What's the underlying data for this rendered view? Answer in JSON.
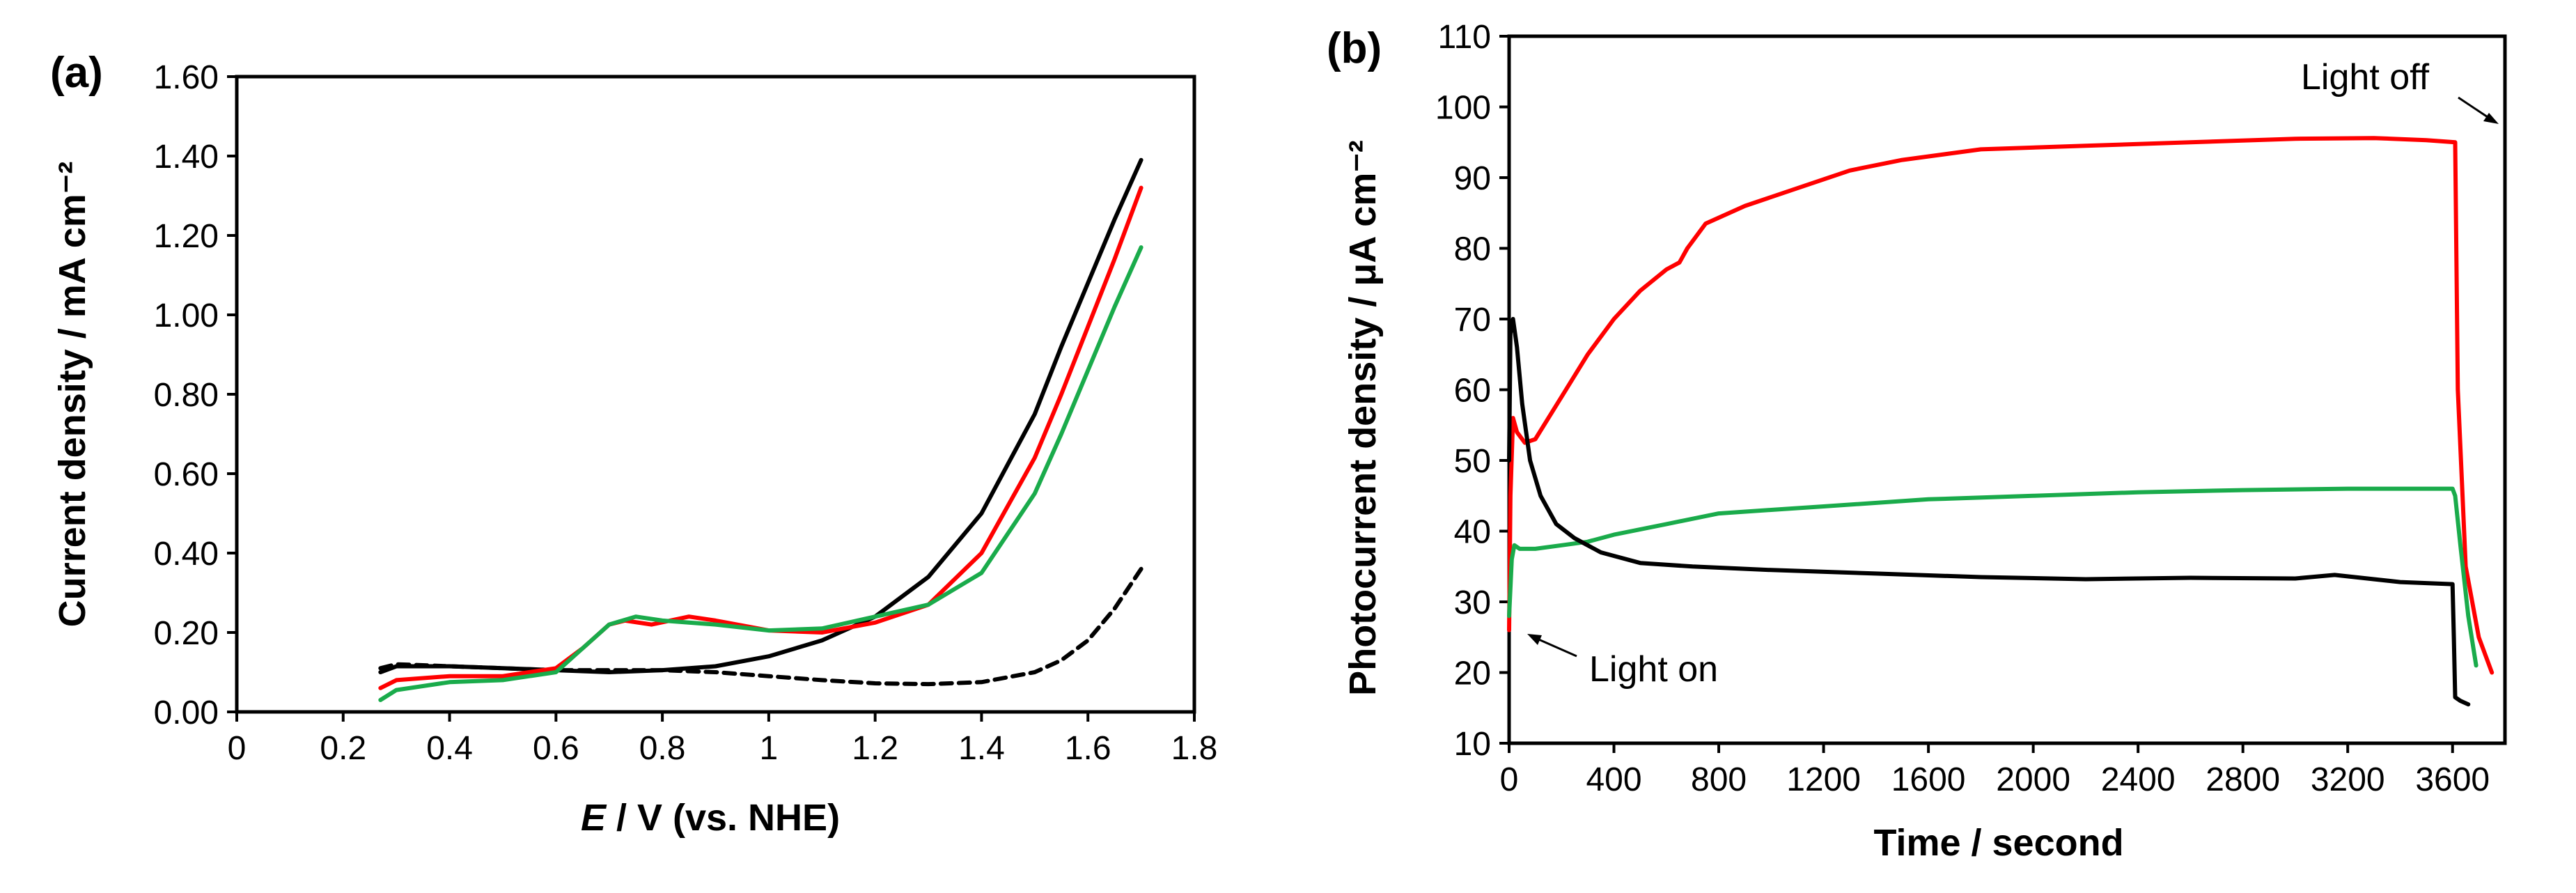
{
  "chart_data": [
    {
      "type": "line",
      "panel_label": "(a)",
      "title": "",
      "xlabel_italic": "E",
      "xlabel_rest": " / V (vs. NHE)",
      "ylabel": "Current density / mA cm⁻²",
      "xlim": [
        0,
        1.8
      ],
      "ylim": [
        0,
        1.6
      ],
      "xticks": [
        0,
        0.2,
        0.4,
        0.6,
        0.8,
        1,
        1.2,
        1.4,
        1.6,
        1.8
      ],
      "xtick_labels": [
        "0",
        "0.2",
        "0.4",
        "0.6",
        "0.8",
        "1",
        "1.2",
        "1.4",
        "1.6",
        "1.8"
      ],
      "yticks": [
        0,
        0.2,
        0.4,
        0.6,
        0.8,
        1.0,
        1.2,
        1.4,
        1.6
      ],
      "ytick_labels": [
        "0.00",
        "0.20",
        "0.40",
        "0.60",
        "0.80",
        "1.00",
        "1.20",
        "1.40",
        "1.60"
      ],
      "series": [
        {
          "name": "dark (dashed)",
          "color": "#000000",
          "dash": true,
          "x": [
            0.27,
            0.3,
            0.4,
            0.6,
            0.8,
            0.9,
            1.0,
            1.1,
            1.2,
            1.3,
            1.4,
            1.5,
            1.55,
            1.6,
            1.65,
            1.7
          ],
          "y": [
            0.11,
            0.12,
            0.115,
            0.105,
            0.105,
            0.1,
            0.09,
            0.08,
            0.072,
            0.07,
            0.075,
            0.1,
            0.13,
            0.18,
            0.26,
            0.36
          ]
        },
        {
          "name": "black",
          "color": "#000000",
          "dash": false,
          "x": [
            0.27,
            0.3,
            0.4,
            0.5,
            0.6,
            0.7,
            0.8,
            0.9,
            1.0,
            1.1,
            1.2,
            1.3,
            1.4,
            1.5,
            1.55,
            1.6,
            1.65,
            1.7
          ],
          "y": [
            0.1,
            0.115,
            0.115,
            0.11,
            0.105,
            0.1,
            0.105,
            0.115,
            0.14,
            0.18,
            0.24,
            0.34,
            0.5,
            0.75,
            0.92,
            1.08,
            1.24,
            1.39
          ]
        },
        {
          "name": "red",
          "color": "#ff0000",
          "dash": false,
          "x": [
            0.27,
            0.3,
            0.4,
            0.5,
            0.6,
            0.65,
            0.7,
            0.73,
            0.78,
            0.85,
            0.9,
            1.0,
            1.1,
            1.2,
            1.3,
            1.4,
            1.5,
            1.55,
            1.6,
            1.65,
            1.7
          ],
          "y": [
            0.06,
            0.08,
            0.09,
            0.09,
            0.11,
            0.16,
            0.22,
            0.23,
            0.22,
            0.24,
            0.23,
            0.205,
            0.2,
            0.225,
            0.27,
            0.4,
            0.64,
            0.8,
            0.97,
            1.14,
            1.32
          ]
        },
        {
          "name": "green",
          "color": "#1aab4b",
          "dash": false,
          "x": [
            0.27,
            0.3,
            0.4,
            0.5,
            0.6,
            0.65,
            0.7,
            0.75,
            0.8,
            0.9,
            1.0,
            1.1,
            1.2,
            1.3,
            1.4,
            1.5,
            1.55,
            1.6,
            1.65,
            1.7
          ],
          "y": [
            0.03,
            0.055,
            0.075,
            0.08,
            0.1,
            0.16,
            0.22,
            0.24,
            0.23,
            0.22,
            0.205,
            0.21,
            0.24,
            0.27,
            0.35,
            0.55,
            0.7,
            0.86,
            1.02,
            1.17
          ]
        }
      ]
    },
    {
      "type": "line",
      "panel_label": "(b)",
      "title": "",
      "xlabel": "Time / second",
      "ylabel": "Photocurrent density / μA cm⁻²",
      "xlim": [
        0,
        3800
      ],
      "ylim": [
        10,
        110
      ],
      "xticks": [
        0,
        400,
        800,
        1200,
        1600,
        2000,
        2400,
        2800,
        3200,
        3600
      ],
      "xtick_labels": [
        "0",
        "400",
        "800",
        "1200",
        "1600",
        "2000",
        "2400",
        "2800",
        "3200",
        "3600"
      ],
      "yticks": [
        10,
        20,
        30,
        40,
        50,
        60,
        70,
        80,
        90,
        100,
        110
      ],
      "ytick_labels": [
        "10",
        "20",
        "30",
        "40",
        "50",
        "60",
        "70",
        "80",
        "90",
        "100",
        "110"
      ],
      "annotations": [
        {
          "text": "Light off",
          "x": 3620,
          "y": 94
        },
        {
          "text": "Light on",
          "x": 60,
          "y": 26
        }
      ],
      "series": [
        {
          "name": "red",
          "color": "#ff0000",
          "x": [
            0,
            5,
            15,
            30,
            60,
            100,
            200,
            300,
            400,
            500,
            600,
            650,
            680,
            750,
            900,
            1100,
            1300,
            1500,
            1800,
            2200,
            2600,
            3000,
            3300,
            3500,
            3610,
            3620,
            3650,
            3700,
            3750
          ],
          "y": [
            26,
            45,
            56,
            54,
            52.5,
            53,
            59,
            65,
            70,
            74,
            77,
            78,
            80,
            83.5,
            86,
            88.5,
            91,
            92.5,
            94,
            94.5,
            95,
            95.5,
            95.6,
            95.3,
            95,
            60,
            35,
            25,
            20
          ]
        },
        {
          "name": "green",
          "color": "#1aab4b",
          "x": [
            0,
            10,
            20,
            40,
            100,
            200,
            300,
            400,
            600,
            800,
            1000,
            1200,
            1600,
            2000,
            2400,
            2800,
            3200,
            3600,
            3610,
            3630,
            3660,
            3690
          ],
          "y": [
            28,
            36,
            38,
            37.5,
            37.5,
            38,
            38.5,
            39.5,
            41,
            42.5,
            43,
            43.5,
            44.5,
            45,
            45.5,
            45.8,
            46,
            46,
            45,
            38,
            28,
            21
          ]
        },
        {
          "name": "black",
          "color": "#000000",
          "x": [
            0,
            5,
            15,
            30,
            50,
            80,
            120,
            180,
            250,
            350,
            500,
            700,
            1000,
            1400,
            1800,
            2200,
            2600,
            3000,
            3150,
            3400,
            3600,
            3605,
            3610,
            3630,
            3660
          ],
          "y": [
            50,
            68,
            70,
            66,
            58,
            50,
            45,
            41,
            39,
            37,
            35.5,
            35,
            34.5,
            34,
            33.5,
            33.2,
            33.4,
            33.3,
            33.8,
            32.8,
            32.5,
            25,
            16.5,
            16,
            15.5
          ]
        }
      ]
    }
  ]
}
